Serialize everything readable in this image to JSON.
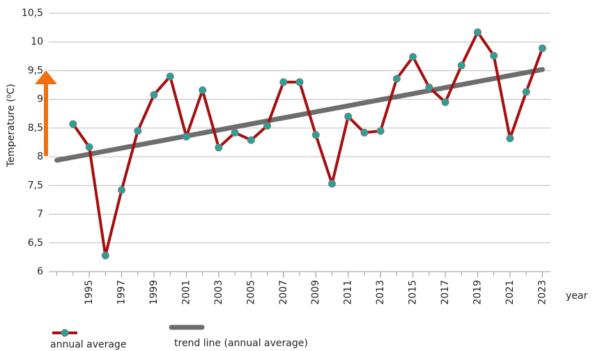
{
  "chart_data": {
    "type": "line",
    "y_label": "Temperature (⁰C)",
    "x_label": "year",
    "x": [
      1994,
      1995,
      1996,
      1997,
      1998,
      1999,
      2000,
      2001,
      2002,
      2003,
      2004,
      2005,
      2006,
      2007,
      2008,
      2009,
      2010,
      2011,
      2012,
      2013,
      2014,
      2015,
      2016,
      2017,
      2018,
      2019,
      2020,
      2021,
      2022,
      2023
    ],
    "series": [
      {
        "name": "annual average",
        "color": "#a50f0f",
        "marker_color": "#2aa198",
        "values": [
          8.57,
          8.17,
          6.28,
          7.42,
          8.45,
          9.08,
          9.4,
          8.35,
          9.16,
          8.16,
          8.42,
          8.29,
          8.54,
          9.3,
          9.3,
          8.38,
          7.53,
          8.7,
          8.42,
          8.45,
          9.36,
          9.74,
          9.21,
          8.95,
          9.59,
          10.17,
          9.76,
          8.32,
          9.13,
          9.89
        ]
      },
      {
        "name": "trend line (annual average)",
        "color": "#6d6d6d",
        "x": [
          1993,
          2023
        ],
        "values": [
          7.94,
          9.52
        ]
      }
    ],
    "xlim": [
      1992.5,
      2023.5
    ],
    "xticks": [
      1995,
      1997,
      1999,
      2001,
      2003,
      2005,
      2007,
      2009,
      2011,
      2013,
      2015,
      2017,
      2019,
      2021,
      2023
    ],
    "ylim": [
      6,
      10.5
    ],
    "yticks": [
      6,
      {
        "value": 6.5,
        "label": "6,5"
      },
      7,
      {
        "value": 7.5,
        "label": "7,5"
      },
      8,
      {
        "value": 8.5,
        "label": "8,5"
      },
      9,
      {
        "value": 9.5,
        "label": "9,5"
      },
      10,
      {
        "value": 10.5,
        "label": "10,5"
      }
    ],
    "grid": true
  }
}
